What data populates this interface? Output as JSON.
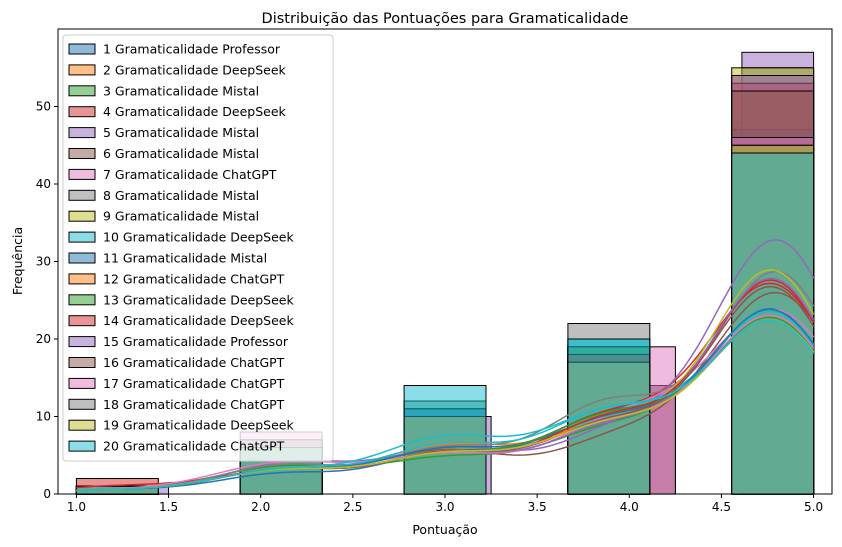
{
  "chart_data": {
    "type": "histogram",
    "title": "Distribuição das Pontuações para Gramaticalidade",
    "xlabel": "Pontuação",
    "ylabel": "Frequência",
    "xlim": [
      0.9,
      5.1
    ],
    "ylim": [
      0,
      60
    ],
    "x_ticks": [
      "1.0",
      "1.5",
      "2.0",
      "2.5",
      "3.0",
      "3.5",
      "4.0",
      "4.5",
      "5.0"
    ],
    "y_ticks": [
      "0",
      "10",
      "20",
      "30",
      "40",
      "50"
    ],
    "legend_position": "top-left",
    "grid": false,
    "kde": true,
    "colors": [
      "#1f77b4",
      "#ff7f0e",
      "#2ca02c",
      "#d62728",
      "#9467bd",
      "#8c564b",
      "#e377c2",
      "#7f7f7f",
      "#bcbd22",
      "#17becf"
    ],
    "series": [
      {
        "name": "1 Gramaticalidade Professor",
        "bins": [
          [
            1.0,
            1.4444,
            1
          ],
          [
            1.8889,
            2.3333,
            5
          ],
          [
            2.7778,
            3.2222,
            10
          ],
          [
            3.6667,
            4.1111,
            19
          ],
          [
            4.5556,
            5.0,
            46
          ]
        ]
      },
      {
        "name": "2 Gramaticalidade DeepSeek",
        "bins": [
          [
            1.0,
            1.4444,
            1
          ],
          [
            1.8889,
            2.3333,
            6
          ],
          [
            2.7778,
            3.2222,
            12
          ],
          [
            3.6667,
            4.1111,
            17
          ],
          [
            4.5556,
            5.0,
            46
          ]
        ]
      },
      {
        "name": "3 Gramaticalidade Mistal",
        "bins": [
          [
            1.0,
            1.4444,
            1
          ],
          [
            1.8889,
            2.3333,
            7
          ],
          [
            2.7778,
            3.2222,
            9
          ],
          [
            3.6667,
            4.1111,
            16
          ],
          [
            4.5556,
            5.0,
            48
          ]
        ]
      },
      {
        "name": "4 Gramaticalidade DeepSeek",
        "bins": [
          [
            1.0,
            1.4444,
            2
          ],
          [
            1.8889,
            2.3333,
            6
          ],
          [
            2.7778,
            3.2222,
            10
          ],
          [
            3.6667,
            4.1111,
            19
          ],
          [
            4.5556,
            5.0,
            54
          ]
        ]
      },
      {
        "name": "5 Gramaticalidade Mistal",
        "bins": [
          [
            1.0,
            1.5,
            1
          ],
          [
            2.0,
            2.3333,
            7
          ],
          [
            2.8333,
            3.25,
            10
          ],
          [
            3.6667,
            4.25,
            14
          ],
          [
            4.6111,
            5.0,
            57
          ]
        ]
      },
      {
        "name": "6 Gramaticalidade Mistal",
        "bins": [
          [
            1.0,
            1.4444,
            1
          ],
          [
            1.8889,
            2.3333,
            6
          ],
          [
            2.7778,
            3.2222,
            11
          ],
          [
            3.6667,
            4.25,
            14
          ],
          [
            4.6111,
            5.0,
            52
          ]
        ]
      },
      {
        "name": "7 Gramaticalidade ChatGPT",
        "bins": [
          [
            1.0,
            1.4444,
            1
          ],
          [
            1.8889,
            2.3333,
            8
          ],
          [
            2.7778,
            3.2222,
            10
          ],
          [
            3.6667,
            4.25,
            19
          ],
          [
            4.6111,
            5.0,
            48
          ]
        ]
      },
      {
        "name": "8 Gramaticalidade Mistal",
        "bins": [
          [
            1.0,
            1.4444,
            1
          ],
          [
            1.8889,
            2.3333,
            7
          ],
          [
            2.7778,
            3.2222,
            11
          ],
          [
            3.6667,
            4.1111,
            22
          ],
          [
            4.6111,
            5.0,
            55
          ]
        ]
      },
      {
        "name": "9 Gramaticalidade Mistal",
        "bins": [
          [
            1.0,
            1.4444,
            1
          ],
          [
            1.8889,
            2.3333,
            6
          ],
          [
            2.7778,
            3.2222,
            10
          ],
          [
            3.6667,
            4.1111,
            18
          ],
          [
            4.5556,
            5.0,
            55
          ]
        ]
      },
      {
        "name": "10 Gramaticalidade DeepSeek",
        "bins": [
          [
            1.0,
            1.4444,
            1
          ],
          [
            1.8889,
            2.3333,
            6
          ],
          [
            2.7778,
            3.2222,
            12
          ],
          [
            3.6667,
            4.1111,
            20
          ],
          [
            4.5556,
            5.0,
            46
          ]
        ]
      },
      {
        "name": "11 Gramaticalidade Mistal",
        "bins": [
          [
            1.0,
            1.4444,
            1
          ],
          [
            1.8889,
            2.3333,
            6
          ],
          [
            2.7778,
            3.2222,
            11
          ],
          [
            3.6667,
            4.1111,
            18
          ],
          [
            4.5556,
            5.0,
            47
          ]
        ]
      },
      {
        "name": "12 Gramaticalidade ChatGPT",
        "bins": [
          [
            1.0,
            1.4444,
            1
          ],
          [
            1.8889,
            2.3333,
            6
          ],
          [
            2.7778,
            3.2222,
            10
          ],
          [
            3.6667,
            4.1111,
            17
          ],
          [
            4.5556,
            5.0,
            45
          ]
        ]
      },
      {
        "name": "13 Gramaticalidade DeepSeek",
        "bins": [
          [
            1.0,
            1.4444,
            1
          ],
          [
            1.8889,
            2.3333,
            6
          ],
          [
            2.7778,
            3.2222,
            10
          ],
          [
            3.6667,
            4.1111,
            19
          ],
          [
            4.5556,
            5.0,
            45
          ]
        ]
      },
      {
        "name": "14 Gramaticalidade DeepSeek",
        "bins": [
          [
            1.0,
            1.4444,
            1
          ],
          [
            1.8889,
            2.3333,
            6
          ],
          [
            2.7778,
            3.2222,
            10
          ],
          [
            3.6667,
            4.1111,
            18
          ],
          [
            4.5556,
            5.0,
            53
          ]
        ]
      },
      {
        "name": "15 Gramaticalidade Professor",
        "bins": [
          [
            1.0,
            1.4444,
            1
          ],
          [
            1.8889,
            2.3333,
            6
          ],
          [
            2.7778,
            3.2222,
            10
          ],
          [
            3.6667,
            4.1111,
            16
          ],
          [
            4.5556,
            5.0,
            54
          ]
        ]
      },
      {
        "name": "16 Gramaticalidade ChatGPT",
        "bins": [
          [
            1.0,
            1.4444,
            1
          ],
          [
            1.8889,
            2.3333,
            6
          ],
          [
            2.7778,
            3.2222,
            10
          ],
          [
            3.6667,
            4.1111,
            17
          ],
          [
            4.5556,
            5.0,
            52
          ]
        ]
      },
      {
        "name": "17 Gramaticalidade ChatGPT",
        "bins": [
          [
            1.0,
            1.4444,
            1
          ],
          [
            1.8889,
            2.3333,
            6
          ],
          [
            2.7778,
            3.2222,
            10
          ],
          [
            3.6667,
            4.1111,
            17
          ],
          [
            4.5556,
            5.0,
            46
          ]
        ]
      },
      {
        "name": "18 Gramaticalidade ChatGPT",
        "bins": [
          [
            1.0,
            1.4444,
            1
          ],
          [
            1.8889,
            2.3333,
            6
          ],
          [
            2.7778,
            3.2222,
            10
          ],
          [
            3.6667,
            4.1111,
            17
          ],
          [
            4.5556,
            5.0,
            45
          ]
        ]
      },
      {
        "name": "19 Gramaticalidade DeepSeek",
        "bins": [
          [
            1.0,
            1.4444,
            1
          ],
          [
            1.8889,
            2.3333,
            6
          ],
          [
            2.7778,
            3.2222,
            10
          ],
          [
            3.6667,
            4.1111,
            17
          ],
          [
            4.5556,
            5.0,
            45
          ]
        ]
      },
      {
        "name": "20 Gramaticalidade ChatGPT",
        "bins": [
          [
            1.0,
            1.4444,
            1
          ],
          [
            1.8889,
            2.3333,
            6
          ],
          [
            2.7778,
            3.2222,
            14
          ],
          [
            3.6667,
            4.1111,
            20
          ],
          [
            4.5556,
            5.0,
            44
          ]
        ]
      }
    ]
  }
}
